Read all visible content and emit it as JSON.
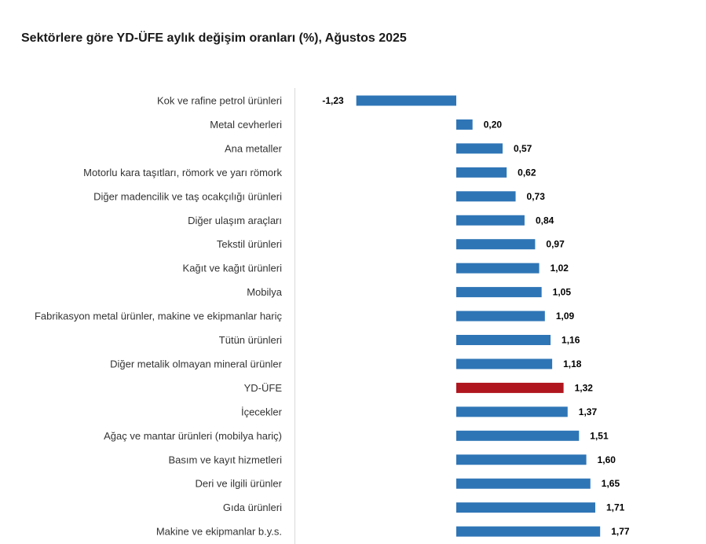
{
  "chart_data": {
    "type": "bar",
    "orientation": "horizontal",
    "title": "Sektörlere göre YD-ÜFE aylık değişim oranları (%), Ağustos 2025",
    "xlabel": "",
    "ylabel": "",
    "categories": [
      "Kok ve rafine petrol ürünleri",
      "Metal cevherleri",
      "Ana metaller",
      "Motorlu kara taşıtları, römork ve yarı römork",
      "Diğer madencilik ve taş ocakçılığı ürünleri",
      "Diğer ulaşım araçları",
      "Tekstil ürünleri",
      "Kağıt ve kağıt ürünleri",
      "Mobilya",
      "Fabrikasyon metal ürünler, makine ve ekipmanlar hariç",
      "Tütün ürünleri",
      "Diğer metalik olmayan mineral ürünler",
      "YD-ÜFE",
      "İçecekler",
      "Ağaç ve mantar ürünleri (mobilya hariç)",
      "Basım ve kayıt hizmetleri",
      "Deri ve ilgili ürünler",
      "Gıda ürünleri",
      "Makine ve ekipmanlar b.y.s."
    ],
    "values": [
      -1.23,
      0.2,
      0.57,
      0.62,
      0.73,
      0.84,
      0.97,
      1.02,
      1.05,
      1.09,
      1.16,
      1.18,
      1.32,
      1.37,
      1.51,
      1.6,
      1.65,
      1.71,
      1.77
    ],
    "value_labels": [
      "-1,23",
      "0,20",
      "0,57",
      "0,62",
      "0,73",
      "0,84",
      "0,97",
      "1,02",
      "1,05",
      "1,09",
      "1,16",
      "1,18",
      "1,32",
      "1,37",
      "1,51",
      "1,60",
      "1,65",
      "1,71",
      "1,77"
    ],
    "highlight_category": "YD-ÜFE",
    "xlim": [
      -1.23,
      1.77
    ],
    "grid": false,
    "legend": "none",
    "colors": {
      "bar": "#2e75b6",
      "highlight": "#b0161e",
      "axis": "#d9d9d9"
    }
  }
}
